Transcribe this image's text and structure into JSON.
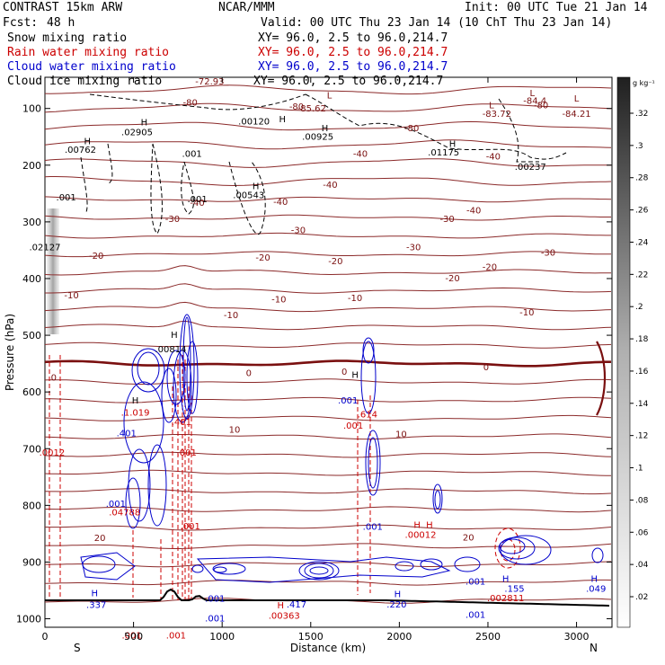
{
  "header": {
    "title_left": "CONTRAST 15km ARW",
    "title_center": "NCAR/MMM",
    "init": "Init: 00 UTC Tue 21 Jan 14",
    "fcst_label": "Fcst:",
    "fcst_value": "48 h",
    "valid": "Valid: 00 UTC Thu 23 Jan 14 (10 ChT Thu 23 Jan 14)"
  },
  "fields": [
    {
      "name": "Snow mixing ratio",
      "xy": "XY=  96.0,  2.5 to  96.0,214.7",
      "color": "#000000"
    },
    {
      "name": "Rain water mixing ratio",
      "xy": "XY=  96.0,  2.5 to  96.0,214.7",
      "color": "#cc0000"
    },
    {
      "name": "Cloud water mixing ratio",
      "xy": "XY=  96.0,  2.5 to  96.0,214.7",
      "color": "#0000cc"
    },
    {
      "name": "Cloud ice mixing ratio",
      "xy": "XY=  96.0,  2.5 to  96.0,214.7",
      "color": "#000000"
    }
  ],
  "colorbar": {
    "unit": "g kg⁻¹",
    "ticks": [
      ".32",
      ".3",
      ".28",
      ".26",
      ".24",
      ".22",
      ".2",
      ".18",
      ".16",
      ".14",
      ".12",
      ".1",
      ".08",
      ".06",
      ".04",
      ".02"
    ]
  },
  "chart_data": {
    "type": "contour",
    "xlabel": "Distance (km)",
    "ylabel": "Pressure (hPa)",
    "x_ticks": [
      0,
      500,
      1000,
      1500,
      2000,
      2500,
      3000
    ],
    "y_ticks": [
      100,
      200,
      300,
      400,
      500,
      600,
      700,
      800,
      900,
      1000
    ],
    "xlim": [
      0,
      3200
    ],
    "ylim": [
      1015,
      45
    ],
    "end_labels": {
      "left": "S",
      "right": "N"
    },
    "temperature_contour_labels": [
      {
        "x": 820,
        "p": 95,
        "text": "-80"
      },
      {
        "x": 1420,
        "p": 102,
        "text": "-80"
      },
      {
        "x": 2070,
        "p": 140,
        "text": "-80"
      },
      {
        "x": 2800,
        "p": 100,
        "text": "-80"
      },
      {
        "x": 1780,
        "p": 185,
        "text": "-40"
      },
      {
        "x": 2530,
        "p": 190,
        "text": "-40"
      },
      {
        "x": 1610,
        "p": 240,
        "text": "-40"
      },
      {
        "x": 860,
        "p": 272,
        "text": "-40"
      },
      {
        "x": 1330,
        "p": 270,
        "text": "-40"
      },
      {
        "x": 2420,
        "p": 285,
        "text": "-40"
      },
      {
        "x": 720,
        "p": 300,
        "text": "-30"
      },
      {
        "x": 1430,
        "p": 320,
        "text": "-30"
      },
      {
        "x": 2270,
        "p": 300,
        "text": "-30"
      },
      {
        "x": 2080,
        "p": 350,
        "text": "-30"
      },
      {
        "x": 2840,
        "p": 360,
        "text": "-30"
      },
      {
        "x": 290,
        "p": 365,
        "text": "-20"
      },
      {
        "x": 1230,
        "p": 368,
        "text": "-20"
      },
      {
        "x": 1640,
        "p": 375,
        "text": "-20"
      },
      {
        "x": 2510,
        "p": 385,
        "text": "-20"
      },
      {
        "x": 2300,
        "p": 405,
        "text": "-20"
      },
      {
        "x": 150,
        "p": 435,
        "text": "-10"
      },
      {
        "x": 1320,
        "p": 442,
        "text": "-10"
      },
      {
        "x": 1750,
        "p": 440,
        "text": "-10"
      },
      {
        "x": 2720,
        "p": 465,
        "text": "-10"
      },
      {
        "x": 1050,
        "p": 470,
        "text": "-10"
      },
      {
        "x": 50,
        "p": 580,
        "text": "0"
      },
      {
        "x": 1150,
        "p": 572,
        "text": "0"
      },
      {
        "x": 1690,
        "p": 570,
        "text": "0"
      },
      {
        "x": 2490,
        "p": 562,
        "text": "0"
      },
      {
        "x": 1070,
        "p": 672,
        "text": "10"
      },
      {
        "x": 2010,
        "p": 680,
        "text": "10"
      },
      {
        "x": 310,
        "p": 863,
        "text": "20"
      },
      {
        "x": 2390,
        "p": 862,
        "text": "20"
      }
    ],
    "extrema_labels": [
      {
        "x": 930,
        "p": 58,
        "text": "-72.93",
        "color": "#7a1010"
      },
      {
        "x": 1505,
        "p": 105,
        "text": "-85.62",
        "color": "#7a1010"
      },
      {
        "x": 2550,
        "p": 115,
        "text": "-83.72",
        "color": "#7a1010"
      },
      {
        "x": 2765,
        "p": 92,
        "text": "-84.4",
        "color": "#7a1010"
      },
      {
        "x": 3000,
        "p": 115,
        "text": "-84.21",
        "color": "#7a1010"
      },
      {
        "x": 1605,
        "p": 82,
        "text": "L",
        "color": "#7a1010"
      },
      {
        "x": 2520,
        "p": 100,
        "text": "L",
        "color": "#7a1010"
      },
      {
        "x": 2750,
        "p": 78,
        "text": "L",
        "color": "#7a1010"
      },
      {
        "x": 3000,
        "p": 88,
        "text": "L",
        "color": "#7a1010"
      },
      {
        "x": 1180,
        "p": 128,
        "text": ".00120",
        "color": "#000000"
      },
      {
        "x": 1340,
        "p": 124,
        "text": "H",
        "color": "#000000"
      },
      {
        "x": 240,
        "p": 163,
        "text": "H",
        "color": "#000000"
      },
      {
        "x": 200,
        "p": 178,
        "text": ".00762",
        "color": "#000000"
      },
      {
        "x": 560,
        "p": 130,
        "text": "H",
        "color": "#000000"
      },
      {
        "x": 520,
        "p": 147,
        "text": ".02905",
        "color": "#000000"
      },
      {
        "x": 1580,
        "p": 140,
        "text": "H",
        "color": "#000000"
      },
      {
        "x": 1540,
        "p": 155,
        "text": ".00925",
        "color": "#000000"
      },
      {
        "x": 2300,
        "p": 168,
        "text": "H",
        "color": "#000000"
      },
      {
        "x": 2250,
        "p": 183,
        "text": ".01175",
        "color": "#000000"
      },
      {
        "x": 2740,
        "p": 208,
        "text": ".00237",
        "color": "#000000"
      },
      {
        "x": 830,
        "p": 185,
        "text": ".001",
        "color": "#000000"
      },
      {
        "x": 1190,
        "p": 242,
        "text": "H",
        "color": "#000000"
      },
      {
        "x": 1150,
        "p": 258,
        "text": ".00543",
        "color": "#000000"
      },
      {
        "x": 120,
        "p": 262,
        "text": ".001",
        "color": "#000000"
      },
      {
        "x": 860,
        "p": 265,
        "text": ".001",
        "color": "#000000"
      },
      {
        "x": 0,
        "p": 350,
        "text": ".02127",
        "color": "#000000"
      },
      {
        "x": 730,
        "p": 505,
        "text": "H",
        "color": "#000000"
      },
      {
        "x": 710,
        "p": 530,
        "text": ".00814",
        "color": "#000000"
      },
      {
        "x": 510,
        "p": 620,
        "text": "H",
        "color": "#000000"
      },
      {
        "x": 510,
        "p": 642,
        "text": ".1.019",
        "color": "#cc0000"
      },
      {
        "x": 1750,
        "p": 575,
        "text": "H",
        "color": "#000000"
      },
      {
        "x": 1820,
        "p": 645,
        "text": ".614",
        "color": "#cc0000"
      },
      {
        "x": 1740,
        "p": 665,
        "text": ".001",
        "color": "#cc0000"
      },
      {
        "x": 1710,
        "p": 620,
        "text": ".001",
        "color": "#0000cc"
      },
      {
        "x": 460,
        "p": 678,
        "text": ".401",
        "color": "#0000cc"
      },
      {
        "x": 770,
        "p": 658,
        "text": ".401",
        "color": "#cc0000"
      },
      {
        "x": 800,
        "p": 712,
        "text": ".001",
        "color": "#cc0000"
      },
      {
        "x": 40,
        "p": 712,
        "text": ".0012",
        "color": "#cc0000"
      },
      {
        "x": 450,
        "p": 818,
        "text": ".04788",
        "color": "#cc0000"
      },
      {
        "x": 400,
        "p": 803,
        "text": ".001",
        "color": "#0000cc"
      },
      {
        "x": 820,
        "p": 842,
        "text": ".001",
        "color": "#cc0000"
      },
      {
        "x": 1850,
        "p": 843,
        "text": ".001",
        "color": "#0000cc"
      },
      {
        "x": 2100,
        "p": 840,
        "text": "H",
        "color": "#cc0000"
      },
      {
        "x": 2170,
        "p": 840,
        "text": "H",
        "color": "#cc0000"
      },
      {
        "x": 2120,
        "p": 857,
        "text": ".00012",
        "color": "#cc0000"
      },
      {
        "x": 280,
        "p": 960,
        "text": "H",
        "color": "#0000cc"
      },
      {
        "x": 290,
        "p": 981,
        "text": ".337",
        "color": "#0000cc"
      },
      {
        "x": 1330,
        "p": 982,
        "text": "H",
        "color": "#cc0000"
      },
      {
        "x": 1420,
        "p": 980,
        "text": ".417",
        "color": "#0000cc"
      },
      {
        "x": 1350,
        "p": 1000,
        "text": ".00363",
        "color": "#cc0000"
      },
      {
        "x": 1990,
        "p": 962,
        "text": "H",
        "color": "#0000cc"
      },
      {
        "x": 1985,
        "p": 980,
        "text": ".220",
        "color": "#0000cc"
      },
      {
        "x": 2600,
        "p": 935,
        "text": "H",
        "color": "#0000cc"
      },
      {
        "x": 2650,
        "p": 952,
        "text": ".155",
        "color": "#0000cc"
      },
      {
        "x": 2600,
        "p": 969,
        "text": ".002811",
        "color": "#cc0000"
      },
      {
        "x": 3100,
        "p": 935,
        "text": "H",
        "color": "#0000cc"
      },
      {
        "x": 3110,
        "p": 952,
        "text": ".049",
        "color": "#0000cc"
      },
      {
        "x": 2430,
        "p": 940,
        "text": ".001",
        "color": "#0000cc"
      },
      {
        "x": 2430,
        "p": 998,
        "text": ".001",
        "color": "#0000cc"
      },
      {
        "x": 960,
        "p": 970,
        "text": ".001",
        "color": "#0000cc"
      },
      {
        "x": 960,
        "p": 1005,
        "text": ".001",
        "color": "#0000cc"
      },
      {
        "x": 490,
        "p": 1035,
        "text": ".001",
        "color": "#cc0000"
      },
      {
        "x": 740,
        "p": 1035,
        "text": ".001",
        "color": "#cc0000"
      }
    ]
  }
}
